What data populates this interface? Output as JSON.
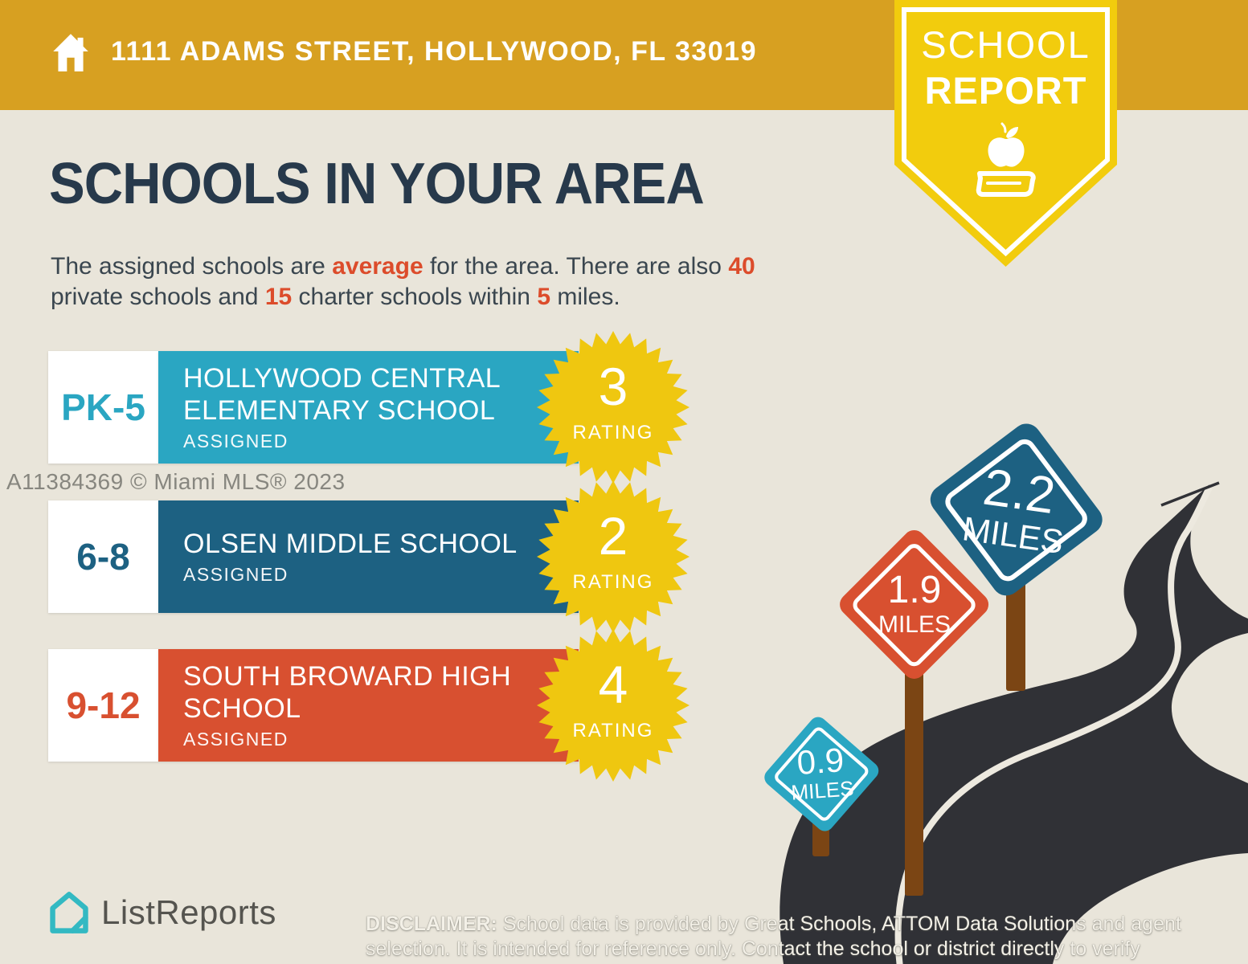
{
  "header": {
    "address": "1111 ADAMS STREET, HOLLYWOOD, FL 33019"
  },
  "badge": {
    "line1": "SCHOOL",
    "line2": "REPORT"
  },
  "title": "SCHOOLS IN YOUR AREA",
  "intro": {
    "line1": [
      {
        "t": "The assigned schools are "
      },
      {
        "t": "average"
      },
      {
        "t": " for the area. There are also "
      },
      {
        "t": "40"
      }
    ],
    "line2": [
      {
        "t": "private schools and "
      },
      {
        "t": "15"
      },
      {
        "t": " charter schools within "
      },
      {
        "t": "5"
      },
      {
        "t": " miles."
      }
    ]
  },
  "schools": [
    {
      "grades": "PK-5",
      "name_line1": "HOLLYWOOD CENTRAL",
      "name_line2": "ELEMENTARY SCHOOL",
      "status": "ASSIGNED",
      "rating": "3",
      "rating_label": "RATING",
      "color": "#2AA6C2"
    },
    {
      "grades": "6-8",
      "name_line1": "OLSEN MIDDLE SCHOOL",
      "name_line2": "",
      "status": "ASSIGNED",
      "rating": "2",
      "rating_label": "RATING",
      "color": "#1D6182"
    },
    {
      "grades": "9-12",
      "name_line1": "SOUTH BROWARD HIGH",
      "name_line2": "SCHOOL",
      "status": "ASSIGNED",
      "rating": "4",
      "rating_label": "RATING",
      "color": "#D85030"
    }
  ],
  "signs": [
    {
      "value": "0.9",
      "unit": "MILES",
      "color": "#2AA6C2"
    },
    {
      "value": "1.9",
      "unit": "MILES",
      "color": "#D85030"
    },
    {
      "value": "2.2",
      "unit": "MILES",
      "color": "#1D6182"
    }
  ],
  "watermark": "A11384369 © Miami MLS® 2023",
  "footer": {
    "brand": "ListReports",
    "disclaimer_label": "DISCLAIMER:",
    "disclaimer_text": " School data is provided by Great Schools, ATTOM Data Solutions and agent selection. It is intended for reference only. Contact the school or district directly to verify enrollment eligibility."
  },
  "colors": {
    "banner_gold": "#D7A021",
    "badge_yellow": "#F2CC0D",
    "starburst_yellow": "#EFC710",
    "navy_text": "#27394B",
    "accent_red": "#DC4C2B",
    "road_dark": "#303136",
    "road_line": "#EDE9DF",
    "post_brown": "#7B4514",
    "background_beige": "#E9E5DA",
    "logo_teal": "#33B9C2"
  }
}
